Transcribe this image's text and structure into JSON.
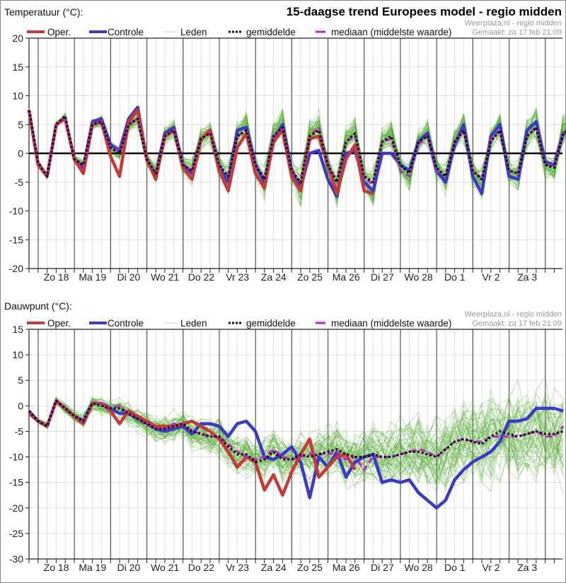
{
  "header": {
    "title": "15-daagse trend Europees model - regio midden",
    "credit_line1": "Weerplaza.nl - regio midden",
    "credit_line2": "Gemaakt: za 17 feb 21:09"
  },
  "legend": {
    "oper": "Oper.",
    "controle": "Controle",
    "leden": "Leden",
    "gemiddelde": "gemiddelde",
    "mediaan": "mediaan (middelste waarde)"
  },
  "colors": {
    "oper": "#c43a36",
    "controle": "#3a3ac4",
    "leden": "#5aab3a",
    "gemiddelde": "#111111",
    "mediaan": "#c020d0",
    "grid": "#dddddd",
    "day_line": "#555555"
  },
  "chart_data": [
    {
      "type": "line",
      "title": "Temperatuur (°C):",
      "ylabel": "Temperatuur (°C)",
      "ylim": [
        -20,
        20
      ],
      "yticks": [
        20,
        15,
        10,
        5,
        0,
        -5,
        -10,
        -15,
        -20
      ],
      "x_step": "6 uur",
      "day_labels": [
        "Zo 18",
        "Ma 19",
        "Di 20",
        "Wo 21",
        "Do 22",
        "Vr 23",
        "Za 24",
        "Zo 25",
        "Ma 26",
        "Di 27",
        "Wo 28",
        "Do 1",
        "Vr 2",
        "Za 3"
      ],
      "grid": true,
      "legend_position": "top",
      "series": [
        {
          "name": "Oper.",
          "key": "oper",
          "values": [
            7.5,
            -2,
            -4,
            5,
            6,
            -1,
            -3.5,
            5,
            5.5,
            -0.5,
            -4,
            5.5,
            7.5,
            -1,
            -4.5,
            3,
            4,
            -2.5,
            -4.5,
            2.5,
            4,
            -3,
            -6.5,
            1,
            3.5,
            -3.5,
            -6,
            2,
            4,
            -4,
            -6.5,
            2.5,
            3,
            -2,
            -7,
            -1,
            1.5,
            -6.5,
            -7
          ]
        },
        {
          "name": "Controle",
          "key": "controle",
          "values": [
            7.5,
            -2,
            -4,
            5,
            6,
            -1,
            -2.5,
            5.5,
            6,
            1.5,
            0.5,
            6,
            8,
            -1,
            -4,
            3.5,
            4.5,
            -2,
            -3.5,
            2.5,
            4,
            -2.5,
            -5,
            4,
            4.5,
            -2,
            -5,
            2.5,
            5,
            -3,
            -6,
            0,
            0.5,
            -4.5,
            -7.5,
            0,
            0.5,
            -5,
            -6.5,
            0,
            0,
            -2,
            -3,
            2,
            3.5,
            -3,
            -5,
            1.5,
            5,
            -4,
            -7,
            3,
            5,
            -4,
            -4.5,
            4,
            5.5,
            -1.5,
            -2,
            3.5,
            3.5,
            -0.5,
            -1,
            1
          ]
        },
        {
          "name": "gemiddelde",
          "key": "gemiddelde",
          "values": [
            7.5,
            -1.5,
            -4,
            5,
            6.5,
            -1,
            -2,
            5,
            5.5,
            1,
            0,
            5,
            6,
            -1,
            -3.5,
            3,
            4,
            -2,
            -3,
            2.5,
            3.5,
            -2,
            -4,
            3,
            4,
            -2,
            -4.5,
            3,
            4.5,
            -3,
            -5,
            3,
            4,
            -2,
            -5,
            2,
            3.5,
            -4,
            -5,
            2,
            3,
            -2,
            -3.5,
            2,
            3,
            -2.5,
            -4,
            2,
            4,
            -3,
            -4.5,
            2,
            4,
            -3,
            -3.5,
            3,
            4.5,
            -2,
            -2.5,
            3.5,
            4.5,
            -2,
            -3,
            2.5
          ]
        },
        {
          "name": "mediaan (middelste waarde)",
          "key": "mediaan",
          "values": [
            7.5,
            -1.5,
            -4,
            5,
            6,
            -1,
            -2,
            5,
            5.5,
            1,
            0.5,
            5,
            6,
            -1,
            -3.5,
            3,
            4,
            -2,
            -3,
            2.5,
            3.5,
            -2,
            -4,
            3,
            4,
            -2,
            -4.5,
            3,
            4.5,
            -3,
            -5,
            3,
            4.5,
            -2,
            -5,
            2,
            3,
            -4,
            -5.5,
            2,
            2.5,
            -3,
            -4,
            1.5,
            3,
            -3,
            -4,
            2,
            4,
            -3,
            -4.5,
            2.5,
            4,
            -3,
            -3.5,
            3,
            4.5,
            -2,
            -2,
            3.5,
            4,
            -2.5,
            -4,
            2.5
          ]
        }
      ]
    },
    {
      "type": "line",
      "title": "Dauwpunt (°C):",
      "ylabel": "Dauwpunt (°C)",
      "ylim": [
        -30,
        15
      ],
      "yticks": [
        15,
        10,
        5,
        0,
        -5,
        -10,
        -15,
        -20,
        -25,
        -30
      ],
      "x_step": "6 uur",
      "day_labels": [
        "Zo 18",
        "Ma 19",
        "Di 20",
        "Wo 21",
        "Do 22",
        "Vr 23",
        "Za 24",
        "Zo 25",
        "Ma 26",
        "Di 27",
        "Wo 28",
        "Do 1",
        "Vr 2",
        "Za 3"
      ],
      "grid": true,
      "legend_position": "top",
      "series": [
        {
          "name": "Oper.",
          "key": "oper",
          "values": [
            -1.5,
            -3,
            -4,
            1,
            -0.5,
            -2,
            -3.5,
            0.5,
            0.5,
            -1,
            -3.5,
            -1,
            -2,
            -3,
            -4,
            -4,
            -4,
            -3.5,
            -3,
            -4,
            -5,
            -6.5,
            -9,
            -12,
            -10,
            -11,
            -16.5,
            -13.5,
            -17.5,
            -13,
            -9.5,
            -6.5,
            -14,
            -12,
            -10,
            -9.5,
            -12.5
          ]
        },
        {
          "name": "Controle",
          "key": "controle",
          "values": [
            -1,
            -3,
            -4,
            1,
            -0.5,
            -2,
            -3,
            0.5,
            0.5,
            -0.5,
            -1.5,
            -1.5,
            -2.5,
            -3.5,
            -4.5,
            -5,
            -4.5,
            -4,
            -5.5,
            -3.5,
            -3.5,
            -4,
            -6,
            -3.5,
            -3,
            -5,
            -10,
            -10.5,
            -9.5,
            -8,
            -11,
            -18,
            -10,
            -12,
            -9,
            -14,
            -11,
            -10,
            -9.5,
            -15,
            -14.5,
            -15,
            -14.5,
            -17,
            -18.5,
            -20,
            -18.5,
            -14.5,
            -12.5,
            -11,
            -10,
            -9,
            -7,
            -3,
            -3,
            -2.5,
            -0.5,
            -0.5,
            -0.5,
            -1
          ]
        },
        {
          "name": "gemiddelde",
          "key": "gemiddelde",
          "values": [
            -1,
            -3,
            -4,
            1,
            -0.5,
            -2,
            -3,
            0.5,
            0,
            -0.5,
            -0.5,
            -1.5,
            -2.5,
            -3.5,
            -4.5,
            -4.5,
            -4,
            -3.5,
            -5,
            -5.5,
            -6,
            -6,
            -8,
            -9.5,
            -9.5,
            -11,
            -10.5,
            -9,
            -10.5,
            -10.5,
            -9.5,
            -10,
            -9.5,
            -9,
            -8.5,
            -9.5,
            -10,
            -10,
            -9.5,
            -10,
            -10,
            -9.5,
            -9,
            -9,
            -9.5,
            -10,
            -8.5,
            -7,
            -6.5,
            -7,
            -7.5,
            -6,
            -5,
            -5.5,
            -6,
            -5.5,
            -5,
            -5.5,
            -5.5,
            -5
          ]
        },
        {
          "name": "mediaan (middelste waarde)",
          "key": "mediaan",
          "values": [
            -1,
            -3,
            -4,
            1,
            -0.5,
            -2,
            -3,
            0.5,
            0.5,
            -0.5,
            0,
            -1.5,
            -2.5,
            -3.5,
            -4.5,
            -4.5,
            -3.5,
            -3.5,
            -5,
            -5.5,
            -6,
            -6,
            -7.5,
            -9,
            -10,
            -10.5,
            -10,
            -8.5,
            -10,
            -10.5,
            -10,
            -9.5,
            -9.5,
            -9.5,
            -9,
            -10.5,
            -10,
            -12.5,
            -10,
            -10,
            -10,
            -9.5,
            -9,
            -8.5,
            -9,
            -10,
            -8.5,
            -7,
            -6.5,
            -7,
            -7,
            -6,
            -6,
            -6,
            -6,
            -5.5,
            -5,
            -6,
            -6,
            -4
          ]
        }
      ]
    }
  ]
}
